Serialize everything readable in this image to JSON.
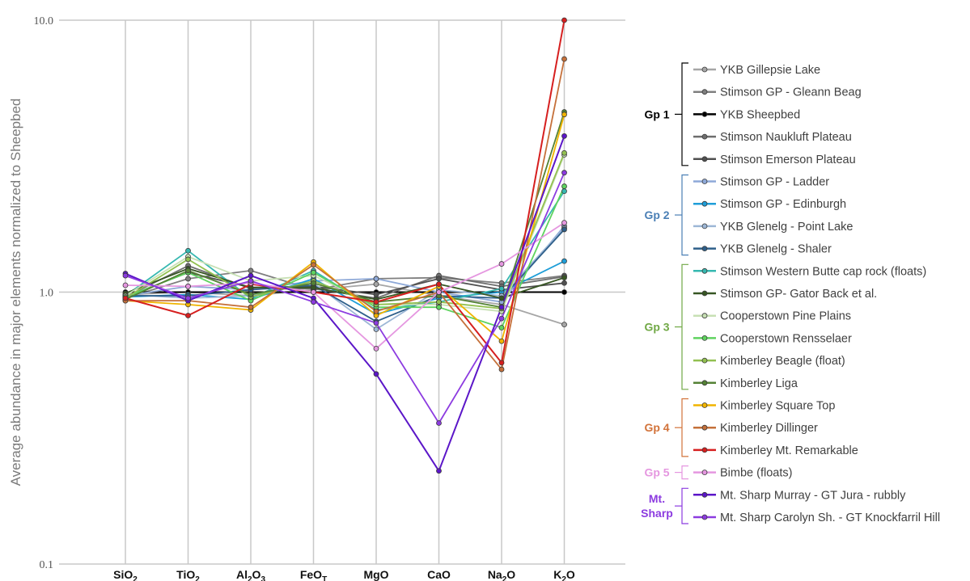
{
  "chart_data": {
    "type": "line",
    "ylabel": "Average abundance in major elements normalized to Sheepbed",
    "y_scale": "log",
    "ylim": [
      0.1,
      10.0
    ],
    "y_ticks": [
      "0.1",
      "1.0",
      "10.0"
    ],
    "categories": [
      "SiO2",
      "TiO2",
      "Al2O3",
      "FeOT",
      "MgO",
      "CaO",
      "Na2O",
      "K2O"
    ],
    "x_tick_labels": [
      {
        "base": "SiO",
        "sub": "2"
      },
      {
        "base": "TiO",
        "sub": "2"
      },
      {
        "base": "Al",
        "sub": "2",
        "mid": "O",
        "sub2": "3"
      },
      {
        "base": "FeO",
        "sub": "T"
      },
      {
        "base": "MgO",
        "sub": ""
      },
      {
        "base": "CaO",
        "sub": ""
      },
      {
        "base": "Na",
        "sub": "2",
        "mid": "O",
        "sub2": ""
      },
      {
        "base": "K",
        "sub": "2",
        "mid": "O",
        "sub2": ""
      }
    ],
    "grid": true,
    "legend_position": "right",
    "groups": [
      {
        "label": "Gp 1",
        "color": "#000000",
        "first": 0,
        "last": 4
      },
      {
        "label": "Gp 2",
        "color": "#4a7fb5",
        "first": 5,
        "last": 8
      },
      {
        "label": "Gp 3",
        "color": "#70a845",
        "first": 9,
        "last": 14
      },
      {
        "label": "Gp 4",
        "color": "#d2733a",
        "first": 15,
        "last": 17
      },
      {
        "label": "Gp 5",
        "color": "#e597e0",
        "first": 18,
        "last": 18
      },
      {
        "label": "Mt. Sharp",
        "color": "#8c3be0",
        "first": 19,
        "last": 20
      }
    ],
    "series": [
      {
        "name": "YKB Gillepsie Lake",
        "color": "#a6a6a6",
        "values": [
          0.98,
          1.0,
          0.97,
          1.02,
          1.07,
          0.97,
          0.9,
          0.76
        ]
      },
      {
        "name": "Stimson GP - Gleann Beag",
        "color": "#7f7f7f",
        "values": [
          0.95,
          1.12,
          1.2,
          1.02,
          1.12,
          1.13,
          1.08,
          1.15
        ]
      },
      {
        "name": "YKB Sheepbed",
        "color": "#000000",
        "values": [
          1.0,
          1.0,
          1.0,
          1.0,
          1.0,
          1.0,
          1.0,
          1.0
        ]
      },
      {
        "name": "Stimson Naukluft Plateau",
        "color": "#6e6e6e",
        "values": [
          0.96,
          1.25,
          1.03,
          1.03,
          0.95,
          1.15,
          1.05,
          1.14
        ]
      },
      {
        "name": "Stimson Emerson Plateau",
        "color": "#505050",
        "values": [
          0.96,
          1.18,
          1.04,
          1.05,
          0.98,
          1.12,
          1.02,
          1.08
        ]
      },
      {
        "name": "Stimson GP - Ladder",
        "color": "#8ea9d8",
        "values": [
          0.97,
          1.05,
          1.02,
          1.1,
          1.12,
          1.0,
          0.92,
          1.75
        ]
      },
      {
        "name": "Stimson GP - Edinburgh",
        "color": "#1f9ed8",
        "values": [
          0.96,
          0.98,
          0.94,
          1.12,
          0.83,
          0.95,
          1.0,
          1.3
        ]
      },
      {
        "name": "YKB Glenelg - Point Lake",
        "color": "#9db7d6",
        "values": [
          0.98,
          0.95,
          0.97,
          1.08,
          0.73,
          1.02,
          0.97,
          1.72
        ]
      },
      {
        "name": "YKB Glenelg - Shaler",
        "color": "#2e5f8a",
        "values": [
          0.97,
          0.97,
          1.02,
          1.06,
          0.78,
          0.97,
          0.95,
          1.7
        ]
      },
      {
        "name": "Stimson Western Butte cap rock (floats)",
        "color": "#36b8b0",
        "values": [
          0.97,
          1.42,
          0.95,
          1.2,
          0.86,
          0.92,
          1.03,
          2.35
        ]
      },
      {
        "name": "Stimson GP- Gator Back et al.",
        "color": "#375623",
        "values": [
          0.99,
          1.22,
          1.04,
          1.04,
          0.94,
          1.07,
          0.95,
          1.13
        ]
      },
      {
        "name": "Cooperstown Pine Plains",
        "color": "#c7e0b4",
        "values": [
          0.97,
          1.35,
          1.1,
          1.15,
          0.9,
          0.9,
          0.85,
          3.2
        ]
      },
      {
        "name": "Cooperstown Rensselaer",
        "color": "#5fd35f",
        "values": [
          0.96,
          1.18,
          0.93,
          1.18,
          0.88,
          0.88,
          0.74,
          2.45
        ]
      },
      {
        "name": "Kimberley Beagle (float)",
        "color": "#92c050",
        "values": [
          0.95,
          1.32,
          0.96,
          1.1,
          0.9,
          0.92,
          0.87,
          3.25
        ]
      },
      {
        "name": "Kimberley Liga",
        "color": "#548235",
        "values": [
          0.94,
          1.2,
          0.98,
          1.08,
          0.92,
          0.97,
          0.88,
          4.6
        ]
      },
      {
        "name": "Kimberley Square Top",
        "color": "#f0b400",
        "values": [
          0.93,
          0.9,
          0.86,
          1.29,
          0.82,
          1.05,
          0.66,
          4.5
        ]
      },
      {
        "name": "Kimberley Dillinger",
        "color": "#c5703a",
        "values": [
          0.93,
          0.93,
          0.88,
          1.26,
          0.85,
          1.0,
          0.52,
          7.2
        ]
      },
      {
        "name": "Kimberley Mt. Remarkable",
        "color": "#d61f1f",
        "values": [
          0.95,
          0.82,
          1.07,
          1.0,
          0.92,
          1.07,
          0.55,
          10.0
        ]
      },
      {
        "name": "Bimbe (floats)",
        "color": "#e597e0",
        "values": [
          1.06,
          1.05,
          1.08,
          1.0,
          0.62,
          1.0,
          1.27,
          1.8
        ]
      },
      {
        "name": "Mt. Sharp Murray - GT Jura - rubbly",
        "color": "#5b16c8",
        "values": [
          1.17,
          0.93,
          1.15,
          0.95,
          0.5,
          0.22,
          0.88,
          3.75
        ]
      },
      {
        "name": "Mt. Sharp Carolyn Sh. - GT Knockfarril Hill",
        "color": "#8c3be0",
        "values": [
          1.15,
          0.95,
          1.1,
          0.92,
          0.77,
          0.33,
          0.8,
          2.75
        ]
      }
    ]
  }
}
